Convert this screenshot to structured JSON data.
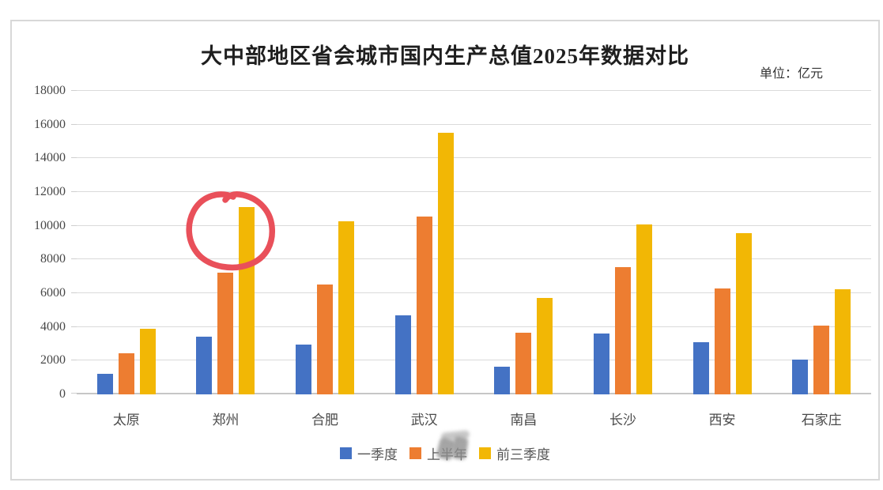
{
  "title": "大中部地区省会城市国内生产总值2025年数据对比",
  "unit_label": "单位：亿元",
  "chart_data": {
    "type": "bar",
    "title": "大中部地区省会城市国内生产总值2025年数据对比",
    "unit": "亿元",
    "categories": [
      "太原",
      "郑州",
      "合肥",
      "武汉",
      "南昌",
      "长沙",
      "西安",
      "石家庄"
    ],
    "series": [
      {
        "id": "q1",
        "name": "一季度",
        "color": "#4472C4",
        "values": [
          1200,
          3400,
          2950,
          4700,
          1650,
          3600,
          3100,
          2050
        ]
      },
      {
        "id": "h1",
        "name": "上半年",
        "color": "#ED7D31",
        "label_obscured": true,
        "values": [
          2450,
          7200,
          6500,
          10550,
          3650,
          7550,
          6300,
          4100
        ]
      },
      {
        "id": "q1q3",
        "name": "前三季度",
        "color": "#F2B705",
        "values": [
          3900,
          11100,
          10250,
          15500,
          5700,
          10100,
          9550,
          6250
        ]
      }
    ],
    "ylim": [
      0,
      18000
    ],
    "ytick_step": 2000,
    "grid": true,
    "legend_position": "bottom"
  },
  "annotation": {
    "shape": "hand-drawn-circle",
    "color": "#E9505A",
    "target_category": "郑州",
    "target_series": "前三季度"
  }
}
